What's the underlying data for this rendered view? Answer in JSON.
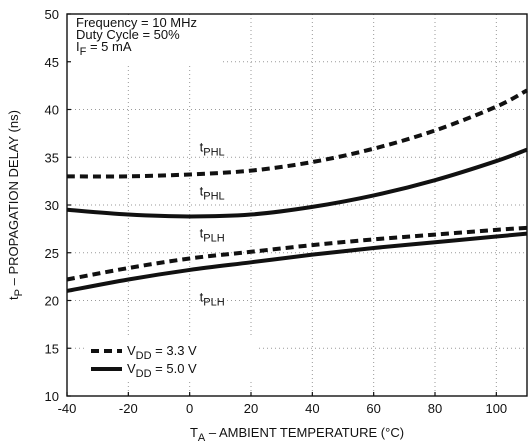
{
  "chart_data": {
    "type": "line",
    "title": "",
    "xlabel": {
      "var": "T",
      "sub": "A",
      "rest": " – AMBIENT TEMPERATURE (°C)"
    },
    "ylabel": {
      "var": "t",
      "sub": "P",
      "rest": " – PROPAGATION DELAY (ns)"
    },
    "xlim": [
      -40,
      110
    ],
    "ylim": [
      10,
      50
    ],
    "xticks": [
      "-40",
      "-20",
      "0",
      "20",
      "40",
      "60",
      "80",
      "100"
    ],
    "yticks": [
      "10",
      "15",
      "20",
      "25",
      "30",
      "35",
      "40",
      "45",
      "50"
    ],
    "grid": true,
    "conditions": [
      "Frequency = 10 MHz",
      "Duty Cycle = 50%",
      {
        "var": "I",
        "sub": "F",
        "rest": " = 5 mA"
      }
    ],
    "legend_position": "bottom-left",
    "legend": [
      {
        "var": "V",
        "sub": "DD",
        "rest": " = 3.3 V",
        "style": "dashed"
      },
      {
        "var": "V",
        "sub": "DD",
        "rest": " = 5.0 V",
        "style": "solid"
      }
    ],
    "series": [
      {
        "label": {
          "var": "t",
          "sub": "PHL"
        },
        "style": "dashed",
        "x": [
          -40,
          -20,
          0,
          20,
          40,
          60,
          80,
          100,
          110
        ],
        "y": [
          33.0,
          33.0,
          33.2,
          33.6,
          34.5,
          35.9,
          37.8,
          40.3,
          42.0
        ]
      },
      {
        "label": {
          "var": "t",
          "sub": "PHL"
        },
        "style": "solid",
        "x": [
          -40,
          -20,
          0,
          20,
          40,
          60,
          80,
          100,
          110
        ],
        "y": [
          29.5,
          29.0,
          28.8,
          29.0,
          29.8,
          31.0,
          32.6,
          34.6,
          35.8
        ]
      },
      {
        "label": {
          "var": "t",
          "sub": "PLH"
        },
        "style": "dashed",
        "x": [
          -40,
          -20,
          0,
          20,
          40,
          60,
          80,
          100,
          110
        ],
        "y": [
          22.2,
          23.4,
          24.4,
          25.1,
          25.8,
          26.4,
          26.9,
          27.4,
          27.6
        ]
      },
      {
        "label": {
          "var": "t",
          "sub": "PLH"
        },
        "style": "solid",
        "x": [
          -40,
          -20,
          0,
          20,
          40,
          60,
          80,
          100,
          110
        ],
        "y": [
          21.0,
          22.2,
          23.2,
          24.0,
          24.8,
          25.5,
          26.1,
          26.7,
          27.0
        ]
      }
    ]
  }
}
